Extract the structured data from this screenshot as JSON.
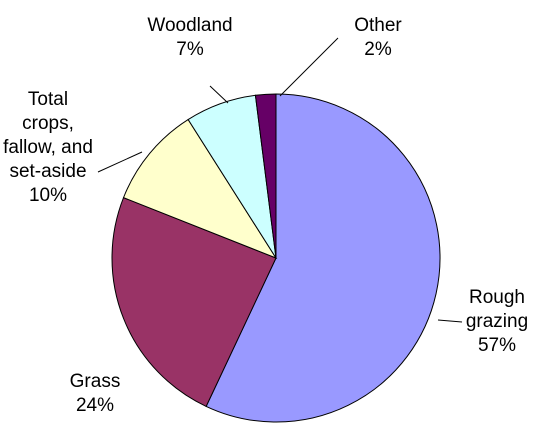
{
  "chart_data": {
    "type": "pie",
    "categories": [
      "Rough grazing",
      "Grass",
      "Total crops, fallow, and set-aside",
      "Woodland",
      "Other"
    ],
    "values": [
      57,
      24,
      10,
      7,
      2
    ],
    "value_labels": [
      "57%",
      "24%",
      "10%",
      "7%",
      "2%"
    ],
    "colors": [
      "#9999ff",
      "#993366",
      "#ffffcc",
      "#ccffff",
      "#660066"
    ]
  }
}
